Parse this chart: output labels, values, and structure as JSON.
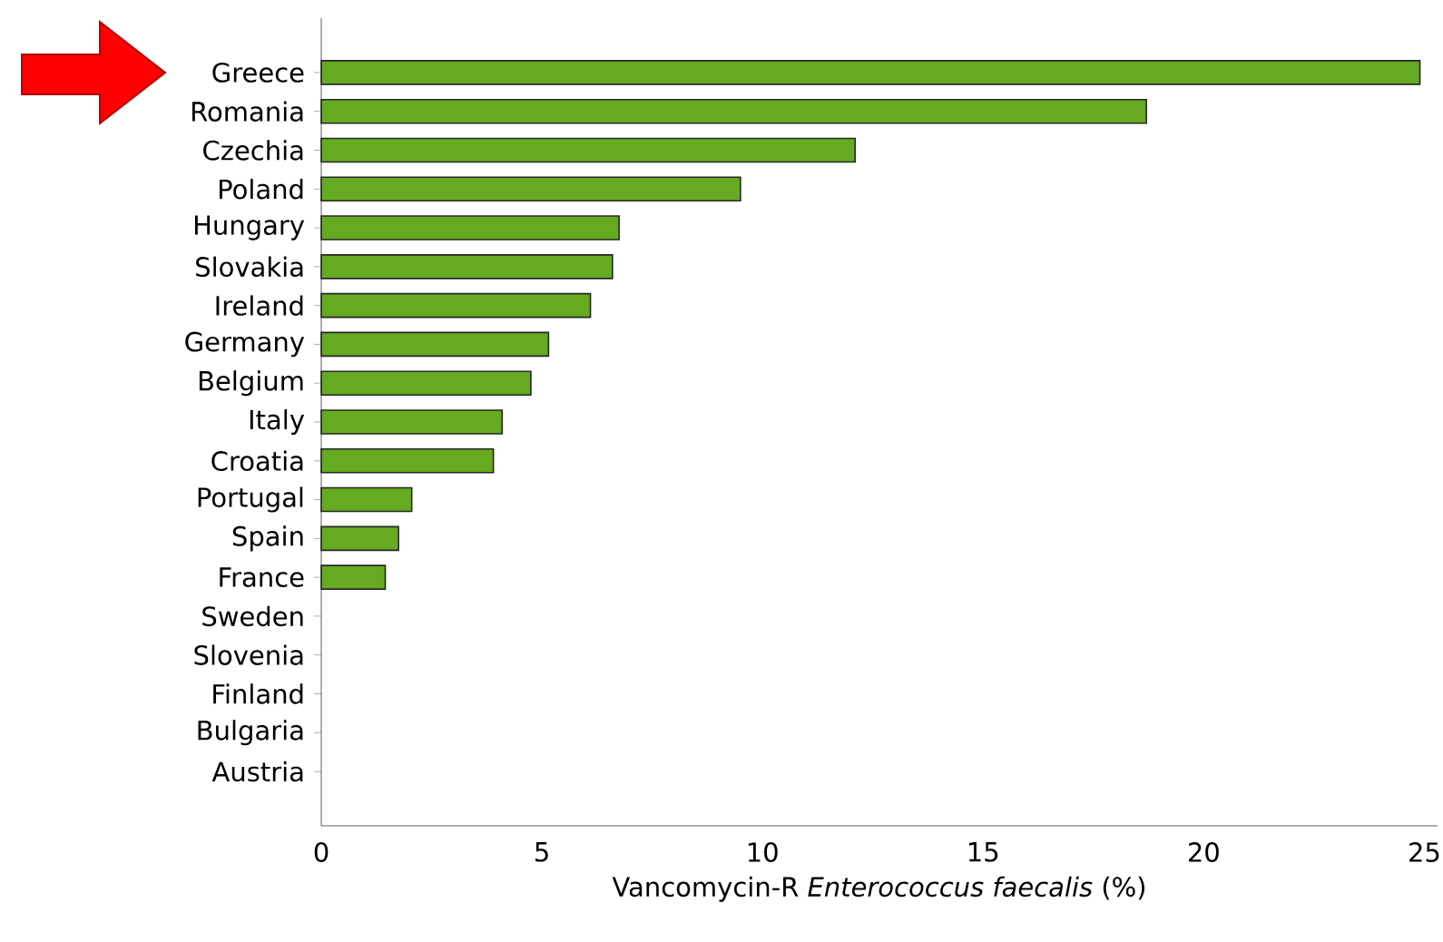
{
  "chart_data": {
    "type": "bar",
    "orientation": "horizontal",
    "categories": [
      "Greece",
      "Romania",
      "Czechia",
      "Poland",
      "Hungary",
      "Slovakia",
      "Ireland",
      "Germany",
      "Belgium",
      "Italy",
      "Croatia",
      "Portugal",
      "Spain",
      "France",
      "Sweden",
      "Slovenia",
      "Finland",
      "Bulgaria",
      "Austria"
    ],
    "values": [
      24.9,
      18.7,
      12.1,
      9.5,
      6.75,
      6.6,
      6.1,
      5.15,
      4.75,
      4.1,
      3.9,
      2.05,
      1.75,
      1.45,
      0,
      0,
      0,
      0,
      0
    ],
    "color": "#66aa22",
    "xlabel": "Vancomycin-R *Enterococcus faecalis* (%)",
    "xlim": [
      0,
      25.3
    ],
    "xticks": [
      0,
      5,
      10,
      15,
      20,
      25
    ]
  }
}
